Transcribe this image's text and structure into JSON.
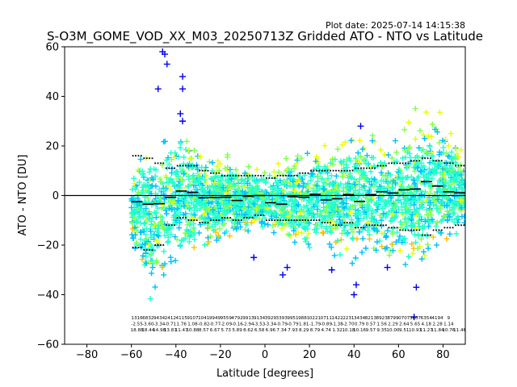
{
  "plot_date": "Plot date: 2025-07-14 14:15:38",
  "chart_data": {
    "type": "scatter",
    "title": "S-O3M_GOME_VOD_XX_M03_20250713Z Gridded ATO - NTO vs Latitude",
    "xlabel": "Latitude [degrees]",
    "ylabel": "ATO - NTO [DU]",
    "xlim": [
      -90,
      90
    ],
    "ylim": [
      -60,
      60
    ],
    "xticks": [
      -80,
      -60,
      -40,
      -20,
      0,
      20,
      40,
      60,
      80
    ],
    "xtick_labels": [
      "−80",
      "−60",
      "−40",
      "−20",
      "0",
      "20",
      "40",
      "60",
      "80"
    ],
    "yticks": [
      -60,
      -40,
      -20,
      0,
      20,
      40,
      60
    ],
    "ytick_labels": [
      "−60",
      "−40",
      "−20",
      "0",
      "20",
      "40",
      "60"
    ],
    "grid": false,
    "zero_line": 0,
    "marker": "+",
    "colors": [
      "#0000ee",
      "#00c0ff",
      "#22ffcc",
      "#80ff50",
      "#e8ff00",
      "#ffc000"
    ],
    "envelope": {
      "lat": [
        -60,
        -55,
        -50,
        -45,
        -40,
        -35,
        -30,
        -25,
        -20,
        -15,
        -10,
        -5,
        0,
        5,
        10,
        15,
        20,
        25,
        30,
        35,
        40,
        45,
        50,
        55,
        60,
        65,
        70,
        75,
        80,
        85,
        90
      ],
      "upper": [
        10,
        22,
        30,
        32,
        32,
        30,
        22,
        20,
        18,
        18,
        15,
        14,
        14,
        16,
        18,
        20,
        20,
        24,
        26,
        28,
        30,
        28,
        28,
        28,
        30,
        34,
        40,
        40,
        38,
        30,
        18
      ],
      "lower": [
        -20,
        -40,
        -52,
        -40,
        -36,
        -34,
        -26,
        -24,
        -22,
        -22,
        -18,
        -16,
        -18,
        -20,
        -24,
        -26,
        -26,
        -26,
        -28,
        -30,
        -32,
        -30,
        -30,
        -30,
        -32,
        -34,
        -38,
        -30,
        -26,
        -24,
        -18
      ]
    },
    "mean_bins": {
      "lat": [
        -60,
        -55,
        -50,
        -45,
        -40,
        -35,
        -30,
        -25,
        -20,
        -15,
        -10,
        -5,
        0,
        5,
        10,
        15,
        20,
        25,
        30,
        35,
        40,
        45,
        50,
        55,
        60,
        65,
        70,
        75,
        80,
        85
      ],
      "mean": [
        -2.5,
        -3.5,
        -3.3,
        -0.7,
        1.8,
        1.3,
        -0.9,
        -0.8,
        -0.7,
        -2.0,
        -0.3,
        0,
        -2.9,
        -3.5,
        -0.5,
        -0.7,
        0.5,
        -1.8,
        -1.3,
        0.4,
        -2.4,
        0.4,
        1.5,
        1.0,
        2.3,
        2.6,
        5.6,
        3.8,
        1.5,
        1.1
      ]
    },
    "upper_sigma_bins": {
      "lat": [
        -60,
        -55,
        -50,
        -45,
        -40,
        -35,
        -30,
        -25,
        -20,
        -15,
        -10,
        -5,
        0,
        5,
        10,
        15,
        20,
        25,
        30,
        35,
        40,
        45,
        50,
        55,
        60,
        65,
        70,
        75,
        80,
        85
      ],
      "value": [
        16,
        15,
        13,
        11,
        12,
        12,
        10,
        9,
        8,
        8,
        8,
        8,
        7,
        8,
        8,
        9,
        10,
        10,
        10,
        10,
        11,
        11,
        12,
        13,
        13,
        14,
        15,
        14,
        13,
        12
      ]
    },
    "lower_sigma_bins": {
      "lat": [
        -60,
        -55,
        -50,
        -45,
        -40,
        -35,
        -30,
        -25,
        -20,
        -15,
        -10,
        -5,
        0,
        5,
        10,
        15,
        20,
        25,
        30,
        35,
        40,
        45,
        50,
        55,
        60,
        65,
        70,
        75,
        80,
        85
      ],
      "value": [
        -21,
        -22,
        -20,
        -12,
        -9,
        -10,
        -11,
        -10,
        -9,
        -10,
        -9,
        -8,
        -10,
        -10,
        -10,
        -10,
        -10,
        -11,
        -12,
        -11,
        -13,
        -12,
        -12,
        -13,
        -14,
        -14,
        -16,
        -14,
        -13,
        -12
      ]
    },
    "outliers": [
      {
        "x": -46,
        "y": 58
      },
      {
        "x": -45,
        "y": 57
      },
      {
        "x": -44,
        "y": 53
      },
      {
        "x": -48,
        "y": 43
      },
      {
        "x": -37,
        "y": 48
      },
      {
        "x": -37,
        "y": 43
      },
      {
        "x": -38,
        "y": 33
      },
      {
        "x": -37,
        "y": 30
      },
      {
        "x": 67,
        "y": -49
      },
      {
        "x": 68,
        "y": -37
      },
      {
        "x": 40,
        "y": -40
      },
      {
        "x": 41,
        "y": -36
      },
      {
        "x": 30,
        "y": -30
      },
      {
        "x": 10,
        "y": -29
      },
      {
        "x": 8,
        "y": -32
      },
      {
        "x": 43,
        "y": 28
      },
      {
        "x": 55,
        "y": -29
      },
      {
        "x": -5,
        "y": -25
      }
    ],
    "bin_stats": {
      "rows": 3,
      "columns": [
        [
          "1316",
          "-2.55",
          "18.88"
        ],
        [
          "6832",
          "-3.60",
          "18.44"
        ],
        [
          "9434",
          "-3.34",
          "14.98"
        ],
        [
          "2412",
          "-0.71",
          "13.81"
        ],
        [
          "4115",
          "1.76",
          "11.47"
        ],
        [
          "9107",
          "1.08",
          "10.88"
        ],
        [
          "1041",
          "-0.82",
          "8.57"
        ],
        [
          "9949",
          "-0.77",
          "6.67"
        ],
        [
          "9559",
          "-2.09",
          "5.73"
        ],
        [
          "4792",
          "-0.16",
          "5.89"
        ],
        [
          "9913",
          "-2.94",
          "8.62"
        ],
        [
          "9134",
          "-3.53",
          "6.58"
        ],
        [
          "3929",
          "-3.34",
          "6.96"
        ],
        [
          "3393",
          "-0.79",
          "7.34"
        ],
        [
          "9951",
          "-0.79",
          "7.93"
        ],
        [
          "9881",
          "1.81",
          "8.29"
        ],
        [
          "0221",
          "-1.79",
          "8.79"
        ],
        [
          "0711",
          "-0.89",
          "4.74"
        ],
        [
          "1422",
          "-1.38",
          "1.32"
        ],
        [
          "2231",
          "-2.70",
          "10.18"
        ],
        [
          "3434",
          "0.79",
          "10.16"
        ],
        [
          "8213",
          "0.57",
          "9.57"
        ],
        [
          "8923",
          "1.56",
          "9.35"
        ],
        [
          "8799",
          "2.29",
          "10.00"
        ],
        [
          "0707",
          "2.64",
          "9.51"
        ],
        [
          "3607",
          "5.65",
          "10.91"
        ],
        [
          "6354",
          "4.18",
          "11.27"
        ],
        [
          "4194",
          "2.28",
          "11.84"
        ],
        [
          "9",
          "1.14",
          "10.76"
        ],
        [
          "",
          "",
          "11.46"
        ]
      ]
    }
  }
}
